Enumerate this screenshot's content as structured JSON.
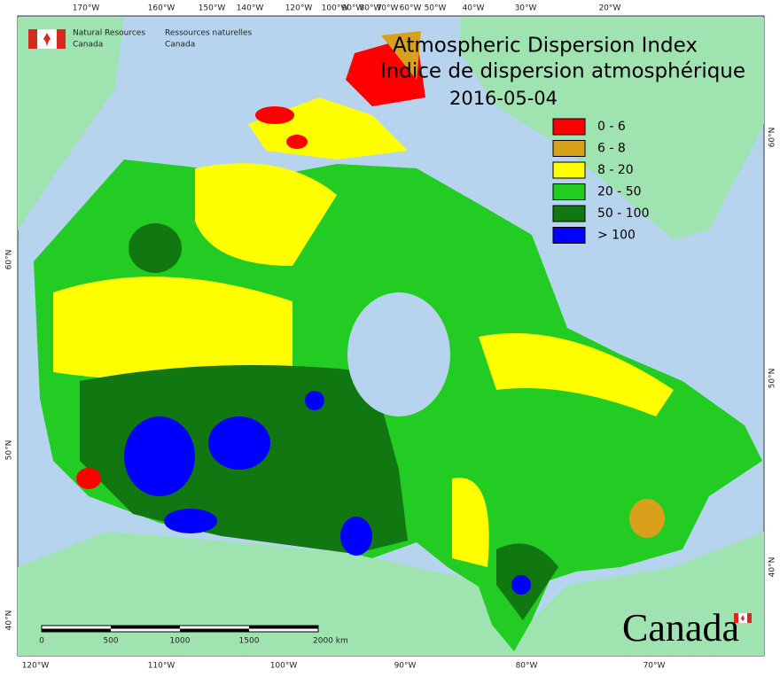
{
  "header": {
    "agency_en": [
      "Natural Resources",
      "Canada"
    ],
    "agency_fr": [
      "Ressources naturelles",
      "Canada"
    ]
  },
  "title": [
    "Atmospheric Dispersion Index",
    "Indice de dispersion atmosphérique"
  ],
  "date": "2016-05-04",
  "legend": [
    {
      "label": "0 - 6",
      "color": "#ff0000"
    },
    {
      "label": "6 - 8",
      "color": "#d9a01c"
    },
    {
      "label": "8 - 20",
      "color": "#ffff00"
    },
    {
      "label": "20 - 50",
      "color": "#22cc22"
    },
    {
      "label": "50 - 100",
      "color": "#117711"
    },
    {
      "label": "> 100",
      "color": "#0000ff"
    }
  ],
  "longitude_top": [
    "170°W",
    "160°W",
    "150°W",
    "140°W",
    "120°W",
    "100°W",
    "90°W",
    "80°W",
    "70°W",
    "60°W",
    "50°W",
    "40°W",
    "30°W",
    "20°W"
  ],
  "longitude_bottom": [
    "120°W",
    "110°W",
    "100°W",
    "90°W",
    "80°W",
    "70°W"
  ],
  "latitude_left": [
    "60°N",
    "50°N",
    "40°N"
  ],
  "latitude_right": [
    "60°N",
    "50°N",
    "40°N"
  ],
  "scale_bar": [
    "0",
    "500",
    "1000",
    "1500",
    "2000 km"
  ],
  "wordmark": "Canada"
}
